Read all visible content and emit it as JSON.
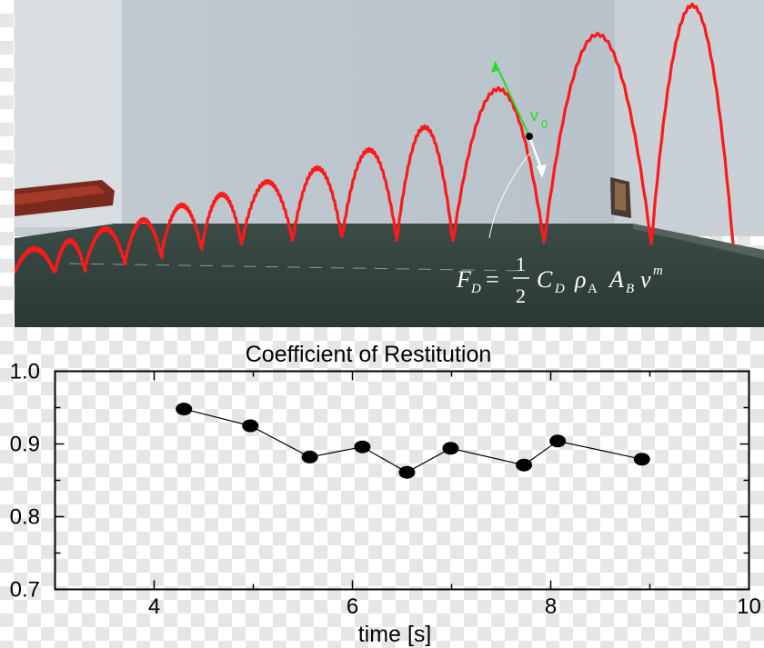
{
  "photo": {
    "equation": {
      "lhs": "F",
      "lhs_sub": "D",
      "equals": "=",
      "frac_num": "1",
      "frac_den": "2",
      "c": "C",
      "c_sub": "D",
      "rho": "ρ",
      "rho_sub": "A",
      "a": "A",
      "a_sub": "B",
      "v": "v",
      "v_sup": "m"
    },
    "velocity_label": "v",
    "velocity_sub": "0",
    "colors": {
      "trajectory": "#ff1a1a",
      "velocity_vector": "#22dd22",
      "drag_vector": "#ffffff"
    }
  },
  "chart_data": {
    "type": "scatter",
    "title": "Coefficient of Restitution",
    "xlabel": "time [s]",
    "ylabel": "",
    "xlim": [
      3.0,
      10.0
    ],
    "ylim": [
      0.7,
      1.0
    ],
    "xticks": [
      4,
      6,
      8,
      10
    ],
    "yticks": [
      0.7,
      0.8,
      0.9,
      1.0
    ],
    "ytick_labels": [
      "0.7",
      "0.8",
      "0.9",
      "1.0"
    ],
    "series": [
      {
        "x": [
          4.3,
          4.97,
          5.57,
          6.1,
          6.55,
          6.99,
          7.73,
          8.07,
          8.92
        ],
        "y": [
          0.948,
          0.925,
          0.882,
          0.896,
          0.861,
          0.894,
          0.871,
          0.904,
          0.879
        ],
        "style": "line-with-markers"
      }
    ],
    "grid": false
  }
}
